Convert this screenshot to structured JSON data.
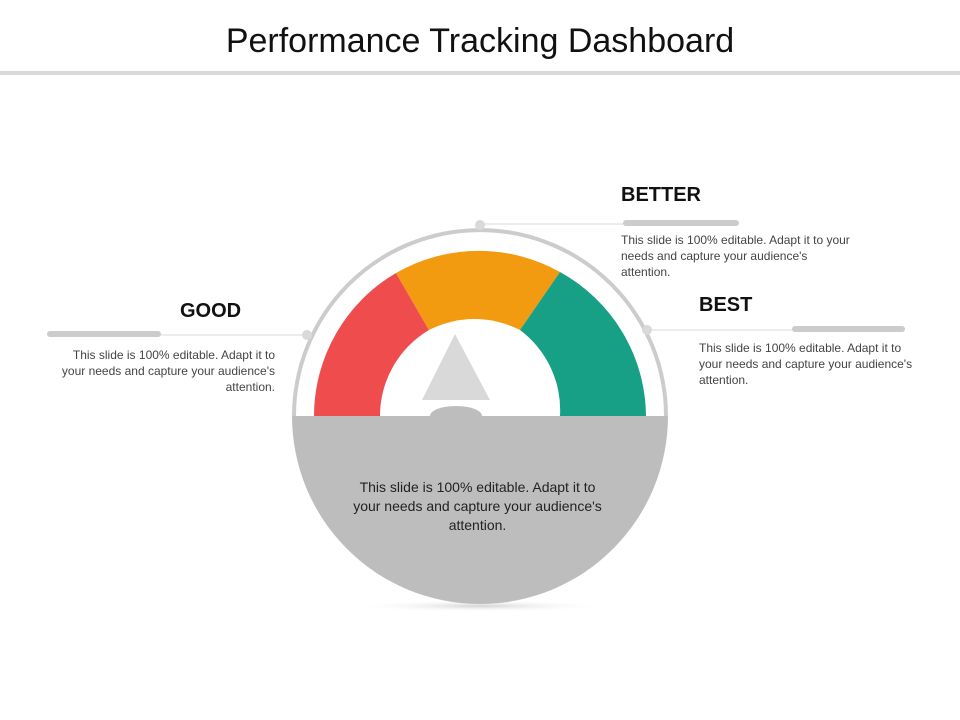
{
  "title": "Performance Tracking Dashboard",
  "colors": {
    "good": "#ef4c4e",
    "better": "#f29b10",
    "best": "#17a085",
    "dial": "#bdbdbd",
    "pointer": "#d9d9d9"
  },
  "levels": {
    "good": {
      "label": "GOOD",
      "text": "This slide is 100% editable. Adapt it to your needs and capture your audience's attention."
    },
    "better": {
      "label": "BETTER",
      "text": "This slide is 100% editable. Adapt it to your needs and capture your audience's attention."
    },
    "best": {
      "label": "BEST",
      "text": "This slide is 100% editable. Adapt it to your needs and capture your audience's attention."
    }
  },
  "center_text": "This slide is 100% editable. Adapt it to your needs and capture your audience's attention."
}
